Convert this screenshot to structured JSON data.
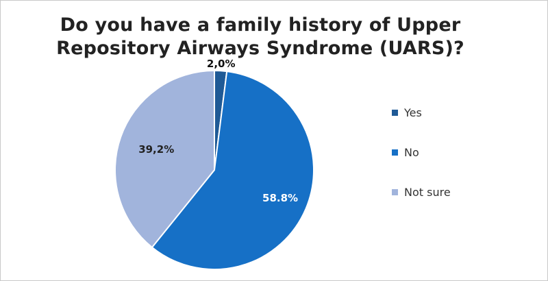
{
  "chart_data": {
    "type": "pie",
    "title_lines": [
      "Do you have a family history of Upper",
      "Repository Airways Syndrome (UARS)?"
    ],
    "slices": [
      {
        "name": "Yes",
        "value": 2.0,
        "label": "2,0%",
        "color": "#1f5a96",
        "label_color": "#111111"
      },
      {
        "name": "No",
        "value": 58.8,
        "label": "58.8%",
        "color": "#1670c6",
        "label_color": "#ffffff"
      },
      {
        "name": "Not sure",
        "value": 39.2,
        "label": "39,2%",
        "color": "#a1b4dc",
        "label_color": "#222222"
      }
    ],
    "legend_position": "right"
  }
}
